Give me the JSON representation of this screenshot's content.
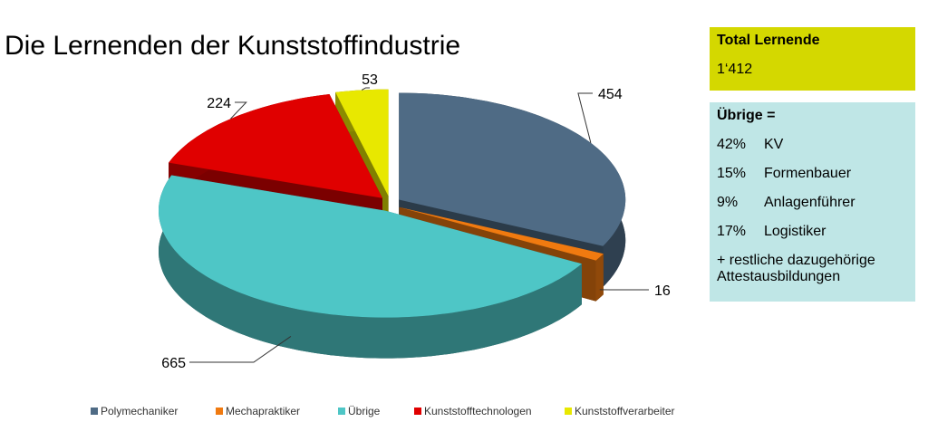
{
  "chart_data": {
    "type": "pie",
    "title": "Die Lernenden der Kunststoffindustrie",
    "categories": [
      "Polymechaniker",
      "Mechapraktiker",
      "Übrige",
      "Kunststofftechnologen",
      "Kunststoffverarbeiter"
    ],
    "values": [
      454,
      16,
      665,
      224,
      53
    ],
    "colors": [
      "#4f6b85",
      "#f07a10",
      "#4ec6c6",
      "#e00000",
      "#e8e800"
    ],
    "legend": "bottom"
  },
  "total_box": {
    "title": "Total Lernende",
    "value": "1‘412"
  },
  "other_box": {
    "title": "Übrige =",
    "rows": [
      [
        "42%",
        "KV"
      ],
      [
        "15%",
        "Formenbauer"
      ],
      [
        "9%",
        "Anlagenführer"
      ],
      [
        "17%",
        "Logistiker"
      ]
    ],
    "note": "+ restliche dazugehörige Attestausbildungen"
  }
}
